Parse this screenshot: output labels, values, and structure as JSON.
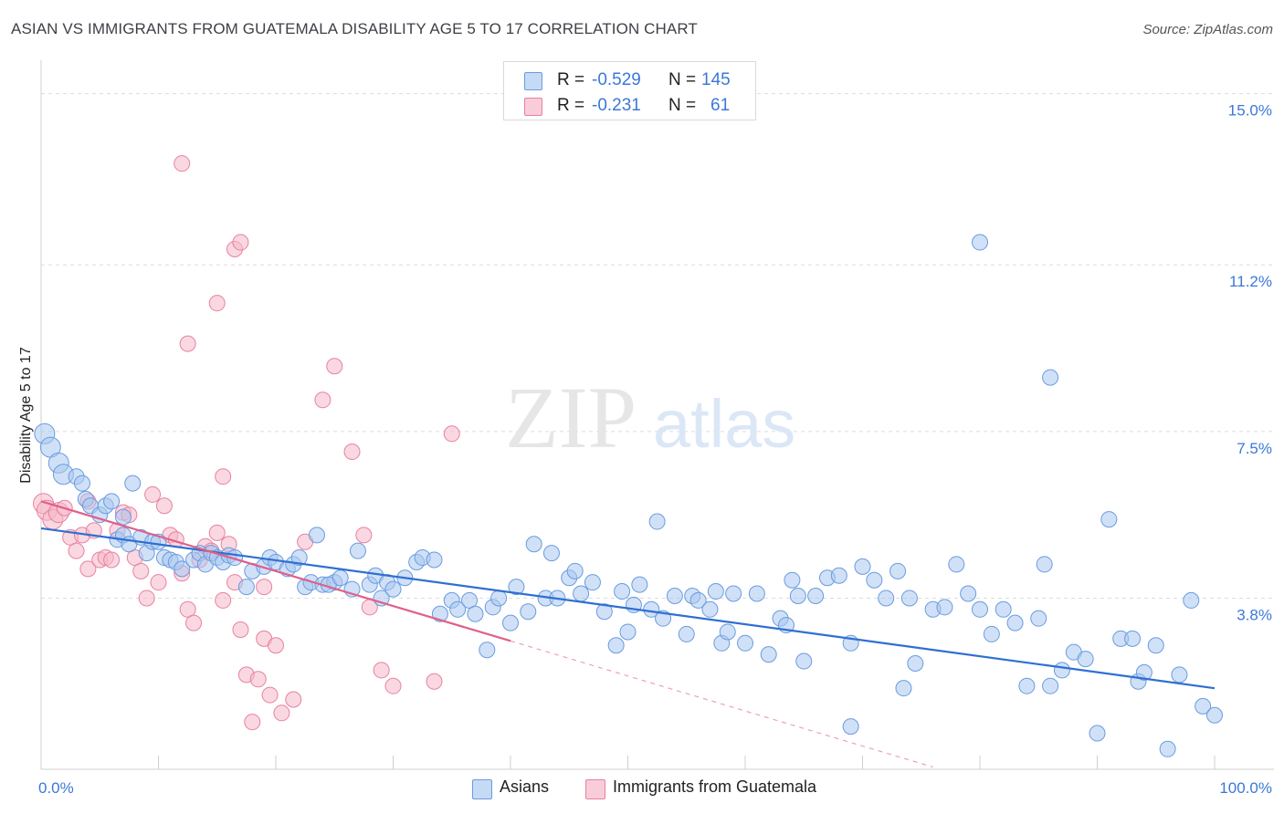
{
  "title": "ASIAN VS IMMIGRANTS FROM GUATEMALA DISABILITY AGE 5 TO 17 CORRELATION CHART",
  "source": "Source: ZipAtlas.com",
  "watermark": {
    "zip": "ZIP",
    "atlas": "atlas"
  },
  "legend_top": {
    "r_label": "R =",
    "n_label": "N =",
    "rows": [
      {
        "r": "-0.529",
        "n": "145",
        "color": "#aac8f0"
      },
      {
        "r": "-0.231",
        "n": "61",
        "color": "#f5b8c9"
      }
    ]
  },
  "legend_bottom": [
    {
      "label": "Asians",
      "color": "#aac8f0"
    },
    {
      "label": "Immigrants from Guatemala",
      "color": "#f5b8c9"
    }
  ],
  "colors": {
    "blue_fill": "#aac8f0",
    "blue_stroke": "#6a9be0",
    "blue_line": "#2f6fd1",
    "pink_fill": "#f5b8c9",
    "pink_stroke": "#e8819f",
    "pink_line": "#e0608a"
  },
  "chart_data": {
    "type": "scatter",
    "title": "ASIAN VS IMMIGRANTS FROM GUATEMALA DISABILITY AGE 5 TO 17 CORRELATION CHART",
    "xlabel": "",
    "ylabel": "Disability Age 5 to 17",
    "xlim": [
      0,
      100
    ],
    "ylim": [
      0,
      15.5
    ],
    "x_tick_labels": [
      "0.0%",
      "100.0%"
    ],
    "y_ticks": [
      3.8,
      7.5,
      11.2,
      15.0
    ],
    "y_tick_labels": [
      "3.8%",
      "7.5%",
      "11.2%",
      "15.0%"
    ],
    "grid": true,
    "legend_position": "top-center",
    "series": [
      {
        "name": "Asians",
        "r": -0.529,
        "n": 145,
        "trend": {
          "x": [
            0,
            100
          ],
          "y": [
            5.35,
            1.8
          ]
        },
        "points": [
          [
            0.3,
            7.45
          ],
          [
            0.8,
            7.15
          ],
          [
            1.5,
            6.8
          ],
          [
            1.9,
            6.55
          ],
          [
            3.0,
            6.5
          ],
          [
            3.5,
            6.35
          ],
          [
            3.8,
            6.0
          ],
          [
            4.2,
            5.85
          ],
          [
            5.0,
            5.65
          ],
          [
            5.5,
            5.85
          ],
          [
            6.0,
            5.95
          ],
          [
            7.0,
            5.6
          ],
          [
            7.8,
            6.35
          ],
          [
            6.5,
            5.1
          ],
          [
            7.0,
            5.2
          ],
          [
            7.5,
            5.0
          ],
          [
            8.5,
            5.15
          ],
          [
            9.0,
            4.8
          ],
          [
            9.5,
            5.05
          ],
          [
            10.0,
            5.05
          ],
          [
            10.5,
            4.7
          ],
          [
            11.0,
            4.65
          ],
          [
            11.5,
            4.6
          ],
          [
            12.0,
            4.45
          ],
          [
            13.0,
            4.65
          ],
          [
            13.5,
            4.8
          ],
          [
            14.0,
            4.55
          ],
          [
            14.5,
            4.8
          ],
          [
            15.0,
            4.7
          ],
          [
            15.5,
            4.6
          ],
          [
            16.0,
            4.75
          ],
          [
            16.5,
            4.7
          ],
          [
            17.5,
            4.05
          ],
          [
            18.0,
            4.4
          ],
          [
            19.0,
            4.5
          ],
          [
            19.5,
            4.7
          ],
          [
            20.0,
            4.6
          ],
          [
            21.0,
            4.45
          ],
          [
            21.5,
            4.55
          ],
          [
            22.0,
            4.7
          ],
          [
            22.5,
            4.05
          ],
          [
            23.0,
            4.15
          ],
          [
            24.0,
            4.1
          ],
          [
            25.0,
            4.15
          ],
          [
            23.5,
            5.2
          ],
          [
            24.5,
            4.1
          ],
          [
            25.5,
            4.25
          ],
          [
            26.5,
            4.0
          ],
          [
            27.0,
            4.85
          ],
          [
            28.0,
            4.1
          ],
          [
            28.5,
            4.3
          ],
          [
            29.0,
            3.8
          ],
          [
            29.5,
            4.15
          ],
          [
            30.0,
            4.0
          ],
          [
            31.0,
            4.25
          ],
          [
            32.0,
            4.6
          ],
          [
            32.5,
            4.7
          ],
          [
            33.5,
            4.65
          ],
          [
            34.0,
            3.45
          ],
          [
            35.0,
            3.75
          ],
          [
            35.5,
            3.55
          ],
          [
            36.5,
            3.75
          ],
          [
            37.0,
            3.45
          ],
          [
            38.0,
            2.65
          ],
          [
            38.5,
            3.6
          ],
          [
            39.0,
            3.8
          ],
          [
            40.0,
            3.25
          ],
          [
            40.5,
            4.05
          ],
          [
            41.5,
            3.5
          ],
          [
            42.0,
            5.0
          ],
          [
            43.0,
            3.8
          ],
          [
            43.5,
            4.8
          ],
          [
            44.0,
            3.8
          ],
          [
            45.0,
            4.25
          ],
          [
            45.5,
            4.4
          ],
          [
            46.0,
            3.9
          ],
          [
            47.0,
            4.15
          ],
          [
            48.0,
            3.5
          ],
          [
            49.0,
            2.75
          ],
          [
            49.5,
            3.95
          ],
          [
            50.0,
            3.05
          ],
          [
            50.5,
            3.65
          ],
          [
            51.0,
            4.1
          ],
          [
            52.0,
            3.55
          ],
          [
            52.5,
            5.5
          ],
          [
            53.0,
            3.35
          ],
          [
            54.0,
            3.85
          ],
          [
            55.0,
            3.0
          ],
          [
            55.5,
            3.85
          ],
          [
            56.0,
            3.75
          ],
          [
            57.0,
            3.55
          ],
          [
            57.5,
            3.95
          ],
          [
            58.0,
            2.8
          ],
          [
            58.5,
            3.05
          ],
          [
            59.0,
            3.9
          ],
          [
            60.0,
            2.8
          ],
          [
            61.0,
            3.9
          ],
          [
            62.0,
            2.55
          ],
          [
            63.0,
            3.35
          ],
          [
            63.5,
            3.2
          ],
          [
            64.0,
            4.2
          ],
          [
            65.0,
            2.4
          ],
          [
            66.0,
            3.85
          ],
          [
            67.0,
            4.25
          ],
          [
            68.0,
            4.3
          ],
          [
            69.0,
            2.8
          ],
          [
            70.0,
            4.5
          ],
          [
            71.0,
            4.2
          ],
          [
            72.0,
            3.8
          ],
          [
            73.0,
            4.4
          ],
          [
            74.0,
            3.8
          ],
          [
            74.5,
            2.35
          ],
          [
            76.0,
            3.55
          ],
          [
            77.0,
            3.6
          ],
          [
            78.0,
            4.55
          ],
          [
            79.0,
            3.9
          ],
          [
            80.0,
            3.55
          ],
          [
            81.0,
            3.0
          ],
          [
            82.0,
            3.55
          ],
          [
            83.0,
            3.25
          ],
          [
            84.0,
            1.85
          ],
          [
            85.0,
            3.35
          ],
          [
            85.5,
            4.55
          ],
          [
            86.0,
            1.85
          ],
          [
            87.0,
            2.2
          ],
          [
            88.0,
            2.6
          ],
          [
            89.0,
            2.45
          ],
          [
            90.0,
            0.8
          ],
          [
            91.0,
            5.55
          ],
          [
            92.0,
            2.9
          ],
          [
            93.0,
            2.9
          ],
          [
            93.5,
            1.95
          ],
          [
            94.0,
            2.15
          ],
          [
            95.0,
            2.75
          ],
          [
            96.0,
            0.45
          ],
          [
            97.0,
            2.1
          ],
          [
            98.0,
            3.75
          ],
          [
            99.0,
            1.4
          ],
          [
            100.0,
            1.2
          ],
          [
            80.0,
            11.7
          ],
          [
            86.0,
            8.7
          ],
          [
            69.0,
            0.95
          ],
          [
            73.5,
            1.8
          ],
          [
            64.5,
            3.85
          ]
        ]
      },
      {
        "name": "Immigrants from Guatemala",
        "r": -0.231,
        "n": 61,
        "trend": {
          "x": [
            0,
            40
          ],
          "y": [
            5.95,
            2.85
          ]
        },
        "trend_dashed": {
          "x": [
            40,
            76
          ],
          "y": [
            2.85,
            0.05
          ]
        },
        "points": [
          [
            0.2,
            5.9
          ],
          [
            0.5,
            5.75
          ],
          [
            1.0,
            5.55
          ],
          [
            1.5,
            5.7
          ],
          [
            2.0,
            5.8
          ],
          [
            2.5,
            5.15
          ],
          [
            3.0,
            4.85
          ],
          [
            3.5,
            5.2
          ],
          [
            4.0,
            4.45
          ],
          [
            4.5,
            5.3
          ],
          [
            5.0,
            4.65
          ],
          [
            5.5,
            4.7
          ],
          [
            6.0,
            4.65
          ],
          [
            6.5,
            5.3
          ],
          [
            7.0,
            5.7
          ],
          [
            7.5,
            5.65
          ],
          [
            8.0,
            4.7
          ],
          [
            8.5,
            4.4
          ],
          [
            9.0,
            3.8
          ],
          [
            9.5,
            6.1
          ],
          [
            10.0,
            4.15
          ],
          [
            10.5,
            5.85
          ],
          [
            11.0,
            5.2
          ],
          [
            11.5,
            5.1
          ],
          [
            12.0,
            4.35
          ],
          [
            12.5,
            3.55
          ],
          [
            13.0,
            3.25
          ],
          [
            13.5,
            4.65
          ],
          [
            14.0,
            4.95
          ],
          [
            14.5,
            4.85
          ],
          [
            15.0,
            5.25
          ],
          [
            15.5,
            3.75
          ],
          [
            16.0,
            5.0
          ],
          [
            16.5,
            4.15
          ],
          [
            17.0,
            3.1
          ],
          [
            17.5,
            2.1
          ],
          [
            18.0,
            1.05
          ],
          [
            18.5,
            2.0
          ],
          [
            19.0,
            2.9
          ],
          [
            19.5,
            1.65
          ],
          [
            20.0,
            2.75
          ],
          [
            20.5,
            1.25
          ],
          [
            21.5,
            1.55
          ],
          [
            22.5,
            5.05
          ],
          [
            24.0,
            8.2
          ],
          [
            25.0,
            8.95
          ],
          [
            26.5,
            7.05
          ],
          [
            27.5,
            5.2
          ],
          [
            12.5,
            9.45
          ],
          [
            15.0,
            10.35
          ],
          [
            15.5,
            6.5
          ],
          [
            16.5,
            11.55
          ],
          [
            17.0,
            11.7
          ],
          [
            12.0,
            13.45
          ],
          [
            19.0,
            4.05
          ],
          [
            28.0,
            3.6
          ],
          [
            29.0,
            2.2
          ],
          [
            30.0,
            1.85
          ],
          [
            33.5,
            1.95
          ],
          [
            35.0,
            7.45
          ],
          [
            4.0,
            5.95
          ]
        ]
      }
    ]
  }
}
